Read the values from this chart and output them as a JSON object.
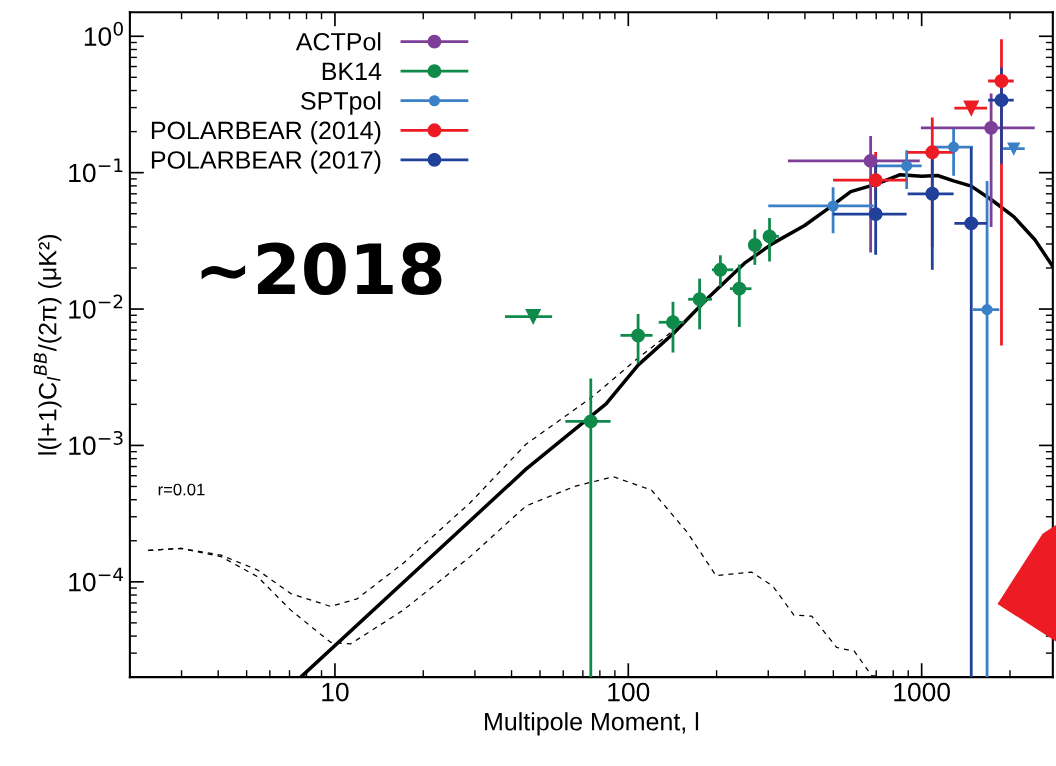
{
  "chart_data": {
    "type": "scatter",
    "xlabel": "Multipole Moment, l",
    "ylabel": "l(l+1)C$_{l}$$^{BB}$/(2π) (μK²)",
    "log": "xy",
    "xlim": [
      2,
      2800
    ],
    "ylim": [
      2e-05,
      1.5
    ],
    "xticks": [
      10,
      100,
      1000
    ],
    "yticks": [
      {
        "value": 0.0001,
        "label": "10$^{−4}$"
      },
      {
        "value": 0.001,
        "label": "10$^{−3}$"
      },
      {
        "value": 0.01,
        "label": "10$^{−2}$"
      },
      {
        "value": 0.1,
        "label": "10$^{−1}$"
      },
      {
        "value": 1,
        "label": "10$^{0}$"
      }
    ],
    "grid": false,
    "legend": "top left",
    "annotations": [
      "~2018",
      "r=0.01"
    ],
    "series": [
      {
        "name": "ACTPol",
        "color": "#7d3f98",
        "marker": "circle",
        "x": [
          670,
          1725
        ],
        "values": [
          0.122,
          0.213
        ],
        "errors": [
          [
            0.026,
            0.186
          ],
          [
            0.04,
            0.38
          ]
        ],
        "xerrors": [
          [
            350,
            985
          ],
          [
            994,
            2430
          ]
        ]
      },
      {
        "name": "BK14",
        "color": "#0f8a4a",
        "marker": "circle",
        "x": [
          74.5,
          108,
          142,
          175,
          206,
          239,
          270,
          303
        ],
        "values": [
          0.0015,
          0.0064,
          0.008,
          0.0118,
          0.0194,
          0.0141,
          0.0295,
          0.0341
        ],
        "errors": [
          [
            2e-05,
            0.0031
          ],
          [
            0.004,
            0.0092
          ],
          [
            0.0048,
            0.0113
          ],
          [
            0.0071,
            0.0167
          ],
          [
            0.0146,
            0.0248
          ],
          [
            0.0074,
            0.0212
          ],
          [
            0.0211,
            0.0383
          ],
          [
            0.0223,
            0.0465
          ]
        ],
        "xerrors": [
          [
            61,
            87
          ],
          [
            94,
            121
          ],
          [
            127,
            155
          ],
          [
            160,
            193
          ],
          [
            193,
            228
          ],
          [
            222,
            263
          ],
          [
            257,
            286
          ],
          [
            290,
            326
          ]
        ]
      },
      {
        "name": "SPTpol",
        "color": "#3b80c6",
        "marker": "circle",
        "x": [
          499,
          889,
          1285,
          1671
        ],
        "values": [
          0.057,
          0.112,
          0.154,
          0.0099
        ],
        "errors": [
          [
            0.036,
            0.078
          ],
          [
            0.076,
            0.146
          ],
          [
            0.095,
            0.209
          ],
          [
            2e-05,
            0.087
          ]
        ],
        "xerrors": [
          [
            300,
            686
          ],
          [
            696,
            1000
          ],
          [
            1087,
            1496
          ],
          [
            1496,
            1840
          ]
        ]
      },
      {
        "name": "POLARBEAR (2014)",
        "color": "#ed1c24",
        "marker": "circle",
        "x": [
          697,
          1087,
          1871
        ],
        "values": [
          0.088,
          0.141,
          0.47
        ],
        "errors": [
          [
            0.063,
            0.142
          ],
          [
            0.0285,
            0.254
          ],
          [
            0.0054,
            0.95
          ]
        ],
        "xerrors": [
          [
            499,
            889
          ],
          [
            896,
            1285
          ],
          [
            1685,
            2060
          ]
        ]
      },
      {
        "name": "POLARBEAR (2017)",
        "color": "#21409a",
        "marker": "circle",
        "x": [
          697,
          1087,
          1476,
          1871
        ],
        "values": [
          0.0497,
          0.07,
          0.0425,
          0.34
        ],
        "errors": [
          [
            0.025,
            0.122
          ],
          [
            0.0194,
            0.131
          ],
          [
            2e-05,
            0.153
          ],
          [
            0.116,
            0.59
          ]
        ],
        "xerrors": [
          [
            499,
            889
          ],
          [
            896,
            1285
          ],
          [
            1293,
            1671
          ],
          [
            1685,
            2060
          ]
        ]
      },
      {
        "color": "#0f8a4a",
        "marker": "triangle",
        "x": [
          47.4
        ],
        "values": [
          0.0088
        ],
        "xerrors": [
          [
            38,
            55
          ]
        ]
      },
      {
        "color": "#3b80c6",
        "marker": "triangle",
        "x": [
          2060
        ],
        "values": [
          0.15
        ],
        "xerrors": [
          [
            1895,
            2246
          ]
        ]
      },
      {
        "color": "#ed1c24",
        "marker": "triangle",
        "x": [
          1476
        ],
        "values": [
          0.297
        ],
        "xerrors": [
          [
            1293,
            1671
          ]
        ]
      },
      {
        "type": "line",
        "color": "#000000",
        "line_style": "solid",
        "marker": "none",
        "x": [
          7.65,
          44.8,
          84,
          108,
          143,
          188,
          249,
          311,
          399,
          485,
          573,
          697,
          845,
          1000,
          1133,
          1285,
          1476,
          1743,
          2060,
          2433,
          2800
        ],
        "values": [
          2e-05,
          0.00067,
          0.00202,
          0.00388,
          0.00668,
          0.0122,
          0.0217,
          0.0303,
          0.041,
          0.0554,
          0.0726,
          0.082,
          0.0966,
          0.094,
          0.0953,
          0.087,
          0.0796,
          0.0625,
          0.0476,
          0.0322,
          0.0205
        ]
      },
      {
        "type": "line",
        "color": "#000000",
        "line_style": "dashed",
        "marker": "none",
        "x": [
          2.31,
          2.99,
          4.09,
          5.45,
          7.07,
          9.67,
          11.9,
          17.1,
          28.9,
          44.8,
          75,
          108,
          143
        ],
        "values": [
          0.00017,
          0.000176,
          0.000157,
          0.000122,
          8.2e-05,
          6.6e-05,
          7.5e-05,
          0.000137,
          0.00038,
          0.00102,
          0.00225,
          0.00437,
          0.007
        ]
      },
      {
        "type": "line",
        "color": "#000000",
        "line_style": "dashed",
        "marker": "none",
        "x": [
          2.31,
          2.99,
          4.09,
          5.45,
          7.07,
          9.67,
          11.3,
          17.1,
          28.9,
          44.8,
          65.5,
          88.9,
          120,
          159,
          199,
          263,
          311,
          367,
          422,
          513,
          589,
          676,
          747
        ],
        "values": [
          0.00017,
          0.000176,
          0.000153,
          0.000109,
          6.2e-05,
          3.6e-05,
          3.5e-05,
          6.2e-05,
          0.000153,
          0.00036,
          0.0005,
          0.00059,
          0.00047,
          0.00023,
          0.000111,
          0.000118,
          9.3e-05,
          5.7e-05,
          5.6e-05,
          3.3e-05,
          3.1e-05,
          2.05e-05,
          2e-05
        ]
      }
    ]
  }
}
